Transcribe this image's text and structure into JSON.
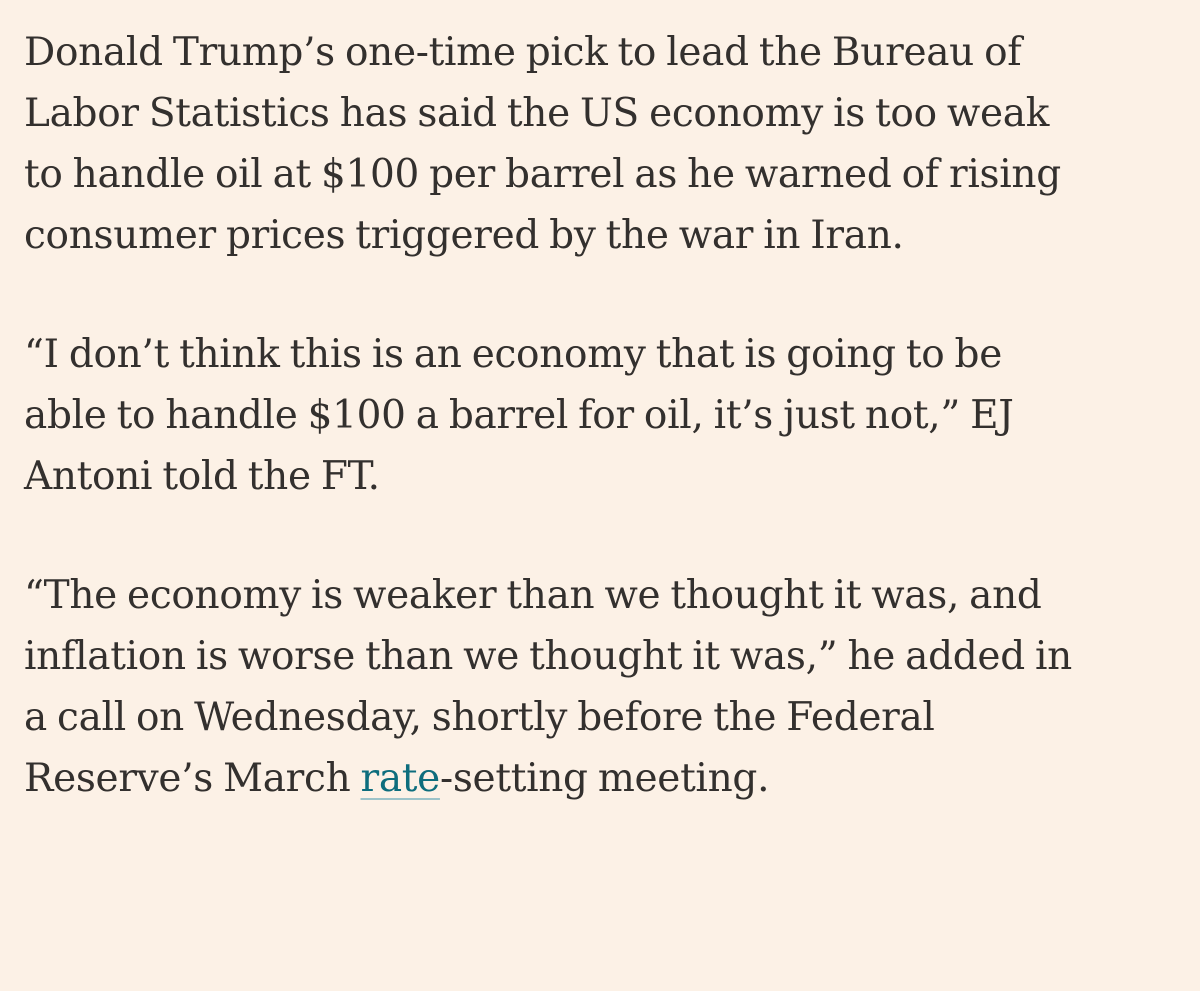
{
  "article": {
    "paragraphs": [
      {
        "lines": [
          "Donald Trump’s one-time pick to lead the Bureau of",
          "Labor Statistics has said the US economy is too weak",
          "to handle oil at $100 per barrel as he warned of rising",
          "consumer prices triggered by the war in Iran."
        ]
      },
      {
        "lines": [
          "“I don’t think this is an economy that is going to be",
          "able to handle $100 a barrel for oil, it’s just not,” EJ",
          "Antoni told the FT."
        ]
      },
      {
        "lines": [
          "“The economy is weaker than we thought it was, and",
          "inflation is worse than we thought it was,” he added in",
          "a call on Wednesday, shortly before the Federal"
        ],
        "last_line": {
          "before": "Reserve’s March ",
          "link": "rate",
          "after": "-setting meeting."
        }
      }
    ]
  },
  "colors": {
    "background": "#FCF1E6",
    "text": "#33302E",
    "link": "#0D6D7D"
  }
}
